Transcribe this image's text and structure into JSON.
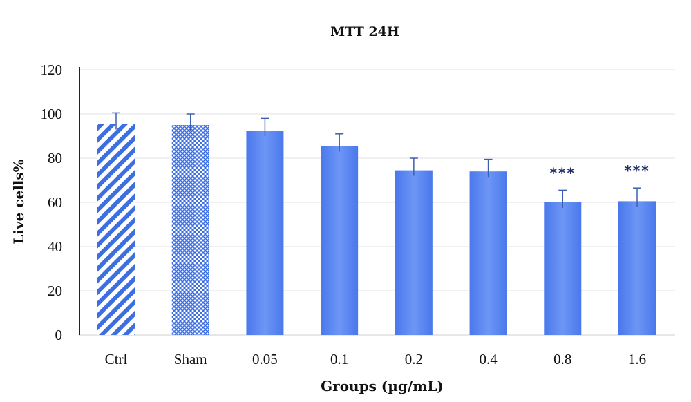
{
  "chart_data": {
    "type": "bar",
    "title": "MTT 24H",
    "xlabel": "Groups (µg/mL)",
    "ylabel": "Live cells%",
    "ylim": [
      0,
      120
    ],
    "yticks": [
      0,
      20,
      40,
      60,
      80,
      100,
      120
    ],
    "grid": true,
    "legend": "none",
    "categories": [
      "Ctrl",
      "Sham",
      "0.05",
      "0.1",
      "0.2",
      "0.4",
      "0.8",
      "1.6"
    ],
    "values": [
      95.5,
      95,
      92.5,
      85.5,
      74.5,
      74,
      60,
      60.5
    ],
    "error": [
      5,
      5,
      5.5,
      5.5,
      5.5,
      5.5,
      5.5,
      6
    ],
    "patterns": [
      "diagonal-stripes",
      "crosshatch",
      "solid",
      "solid",
      "solid",
      "solid",
      "solid",
      "solid"
    ],
    "annotations": [
      {
        "category": "0.8",
        "text": "***"
      },
      {
        "category": "1.6",
        "text": "***"
      }
    ],
    "colors": {
      "bar": "#4f7ff0",
      "bar_light": "#6d96f5",
      "pattern": "#3d6fe0",
      "error": "#3a5fb0",
      "grid": "#e0e0e0",
      "axis": "#222222"
    }
  }
}
